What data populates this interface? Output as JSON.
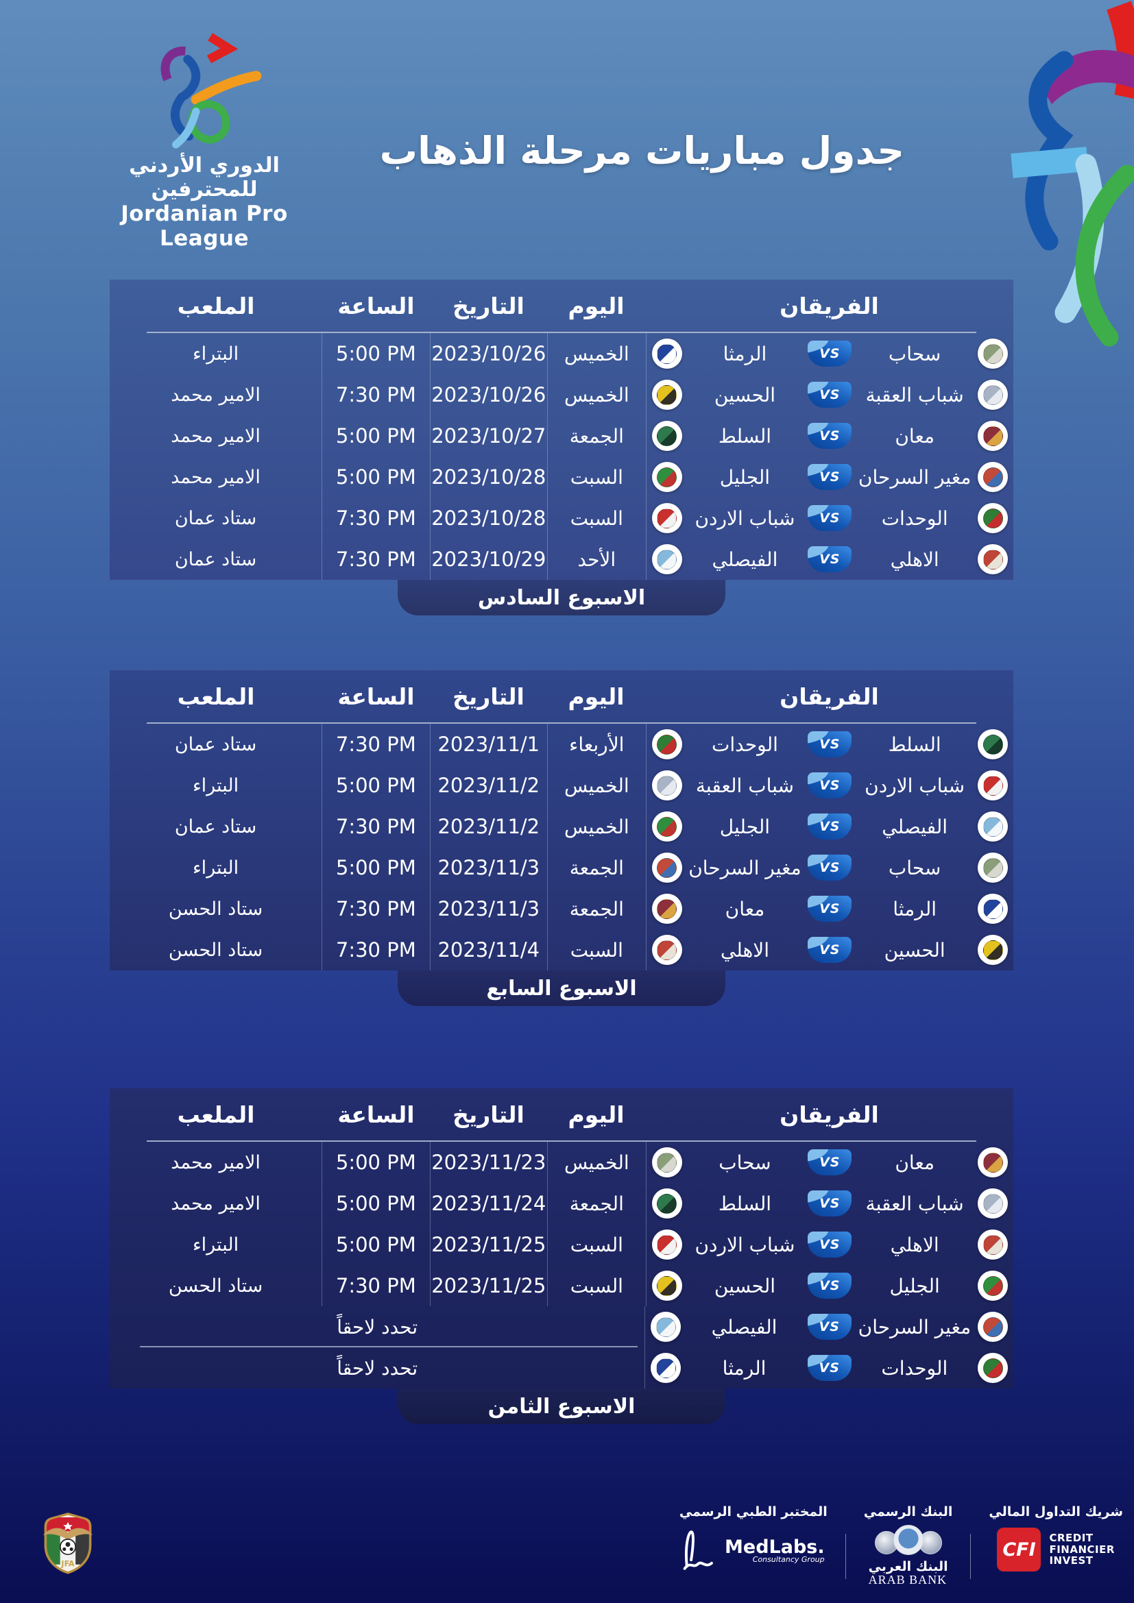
{
  "header": {
    "logo": {
      "arabic": "الدوري الأردني للمحترفين",
      "english": "Jordanian Pro League"
    },
    "title": "جدول مباريات مرحلة الذهاب"
  },
  "columns": {
    "teams": "الفريقان",
    "day": "اليوم",
    "date": "التاريخ",
    "time": "الساعة",
    "stadium": "الملعب"
  },
  "labels": {
    "vs": "VS",
    "tbd": "تحدد لاحقاً"
  },
  "colors": {
    "vs_badge_blue": "#1256b4",
    "cfi_red": "#d8232a",
    "panel_navy": "#2b3a80",
    "page_top_blue": "#5f8cbc",
    "page_bottom_navy": "#0a0e52"
  },
  "clubs": {
    "سحاب": {
      "colors": [
        "#8a9e7a",
        "#d8d8cf"
      ]
    },
    "الرمثا": {
      "colors": [
        "#23449c",
        "#ffffff"
      ]
    },
    "شباب العقبة": {
      "colors": [
        "#a8b4c6",
        "#e6e9f0"
      ]
    },
    "الحسين": {
      "colors": [
        "#e3c220",
        "#332f25"
      ]
    },
    "معان": {
      "colors": [
        "#8e2f3c",
        "#d9a441"
      ]
    },
    "السلط": {
      "colors": [
        "#2e7a4d",
        "#173d2a"
      ]
    },
    "مغير السرحان": {
      "colors": [
        "#c24a3a",
        "#3f6fb0"
      ]
    },
    "الجليل": {
      "colors": [
        "#2f8f3e",
        "#bf3530"
      ]
    },
    "الوحدات": {
      "colors": [
        "#2f7d36",
        "#c22f2c"
      ]
    },
    "شباب الاردن": {
      "colors": [
        "#c8302e",
        "#f2f2f2"
      ]
    },
    "الاهلي": {
      "colors": [
        "#bf4538",
        "#e8e3d6"
      ]
    },
    "الفيصلي": {
      "colors": [
        "#86b8dc",
        "#f4f7fa"
      ]
    }
  },
  "tables": [
    {
      "week_label": "الاسبوع السادس",
      "matches": [
        {
          "team1": "سحاب",
          "team2": "الرمثا",
          "day": "الخميس",
          "date": "2023/10/26",
          "time": "5:00 PM",
          "stadium": "البتراء"
        },
        {
          "team1": "شباب العقبة",
          "team2": "الحسين",
          "day": "الخميس",
          "date": "2023/10/26",
          "time": "7:30 PM",
          "stadium": "الامير محمد"
        },
        {
          "team1": "معان",
          "team2": "السلط",
          "day": "الجمعة",
          "date": "2023/10/27",
          "time": "5:00 PM",
          "stadium": "الامير محمد"
        },
        {
          "team1": "مغير السرحان",
          "team2": "الجليل",
          "day": "السبت",
          "date": "2023/10/28",
          "time": "5:00 PM",
          "stadium": "الامير محمد"
        },
        {
          "team1": "الوحدات",
          "team2": "شباب الاردن",
          "day": "السبت",
          "date": "2023/10/28",
          "time": "7:30 PM",
          "stadium": "ستاد عمان"
        },
        {
          "team1": "الاهلي",
          "team2": "الفيصلي",
          "day": "الأحد",
          "date": "2023/10/29",
          "time": "7:30 PM",
          "stadium": "ستاد عمان"
        }
      ]
    },
    {
      "week_label": "الاسبوع السابع",
      "matches": [
        {
          "team1": "السلط",
          "team2": "الوحدات",
          "day": "الأربعاء",
          "date": "2023/11/1",
          "time": "7:30 PM",
          "stadium": "ستاد عمان"
        },
        {
          "team1": "شباب الاردن",
          "team2": "شباب العقبة",
          "day": "الخميس",
          "date": "2023/11/2",
          "time": "5:00 PM",
          "stadium": "البتراء"
        },
        {
          "team1": "الفيصلي",
          "team2": "الجليل",
          "day": "الخميس",
          "date": "2023/11/2",
          "time": "7:30 PM",
          "stadium": "ستاد عمان"
        },
        {
          "team1": "سحاب",
          "team2": "مغير السرحان",
          "day": "الجمعة",
          "date": "2023/11/3",
          "time": "5:00 PM",
          "stadium": "البتراء"
        },
        {
          "team1": "الرمثا",
          "team2": "معان",
          "day": "الجمعة",
          "date": "2023/11/3",
          "time": "7:30 PM",
          "stadium": "ستاد الحسن"
        },
        {
          "team1": "الحسين",
          "team2": "الاهلي",
          "day": "السبت",
          "date": "2023/11/4",
          "time": "7:30 PM",
          "stadium": "ستاد الحسن"
        }
      ]
    },
    {
      "week_label": "الاسبوع الثامن",
      "matches": [
        {
          "team1": "معان",
          "team2": "سحاب",
          "day": "الخميس",
          "date": "2023/11/23",
          "time": "5:00 PM",
          "stadium": "الامير محمد"
        },
        {
          "team1": "شباب العقبة",
          "team2": "السلط",
          "day": "الجمعة",
          "date": "2023/11/24",
          "time": "5:00 PM",
          "stadium": "الامير محمد"
        },
        {
          "team1": "الاهلي",
          "team2": "شباب الاردن",
          "day": "السبت",
          "date": "2023/11/25",
          "time": "5:00 PM",
          "stadium": "البتراء"
        },
        {
          "team1": "الجليل",
          "team2": "الحسين",
          "day": "السبت",
          "date": "2023/11/25",
          "time": "7:30 PM",
          "stadium": "ستاد الحسن"
        },
        {
          "team1": "مغير السرحان",
          "team2": "الفيصلي",
          "day": null,
          "date": null,
          "time": null,
          "stadium": null
        },
        {
          "team1": "الوحدات",
          "team2": "الرمثا",
          "day": null,
          "date": null,
          "time": null,
          "stadium": null
        }
      ]
    }
  ],
  "sponsors": {
    "medlabs": {
      "label": "المختبر الطبي الرسمي",
      "name": "MedLabs.",
      "sub": "Consultancy Group"
    },
    "arabbank": {
      "label": "البنك الرسمي",
      "name_ar": "البنك العربي",
      "name_en": "ARAB BANK"
    },
    "cfi": {
      "label": "شريك التداول المالي",
      "abbr": "CFI",
      "lines": [
        "CREDIT",
        "FINANCIER",
        "INVEST"
      ]
    }
  },
  "footer": {
    "jfa": "JFA"
  }
}
